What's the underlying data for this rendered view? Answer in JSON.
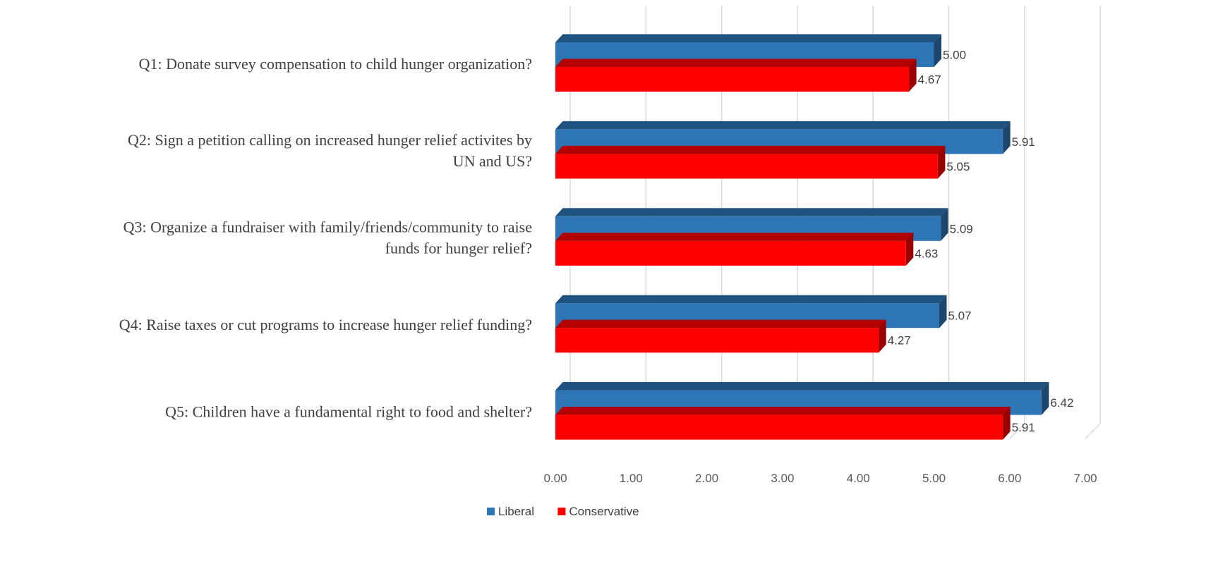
{
  "chart_data": {
    "type": "bar",
    "orientation": "horizontal",
    "three_d": true,
    "categories": [
      [
        "Q1: Donate survey compensation to child hunger organization?"
      ],
      [
        "Q2: Sign a petition calling on increased hunger relief activites by",
        "UN and US?"
      ],
      [
        "Q3: Organize a fundraiser with family/friends/community to raise",
        "funds for hunger relief?"
      ],
      [
        "Q4: Raise taxes or cut programs to increase hunger relief funding?"
      ],
      [
        "Q5: Children have a fundamental right to food and shelter?"
      ]
    ],
    "series": [
      {
        "name": "Liberal",
        "color": "#2E75B6",
        "values": [
          5.0,
          5.91,
          5.09,
          5.07,
          6.42
        ],
        "labels": [
          "5.00",
          "5.91",
          "5.09",
          "5.07",
          "6.42"
        ]
      },
      {
        "name": "Conservative",
        "color": "#FF0000",
        "values": [
          4.67,
          5.05,
          4.63,
          4.27,
          5.91
        ],
        "labels": [
          "4.67",
          "5.05",
          "4.63",
          "4.27",
          "5.91"
        ]
      }
    ],
    "xlim": [
      0,
      7
    ],
    "xticks": [
      "0.00",
      "1.00",
      "2.00",
      "3.00",
      "4.00",
      "5.00",
      "6.00",
      "7.00"
    ],
    "grid": true,
    "legend": "bottom"
  }
}
